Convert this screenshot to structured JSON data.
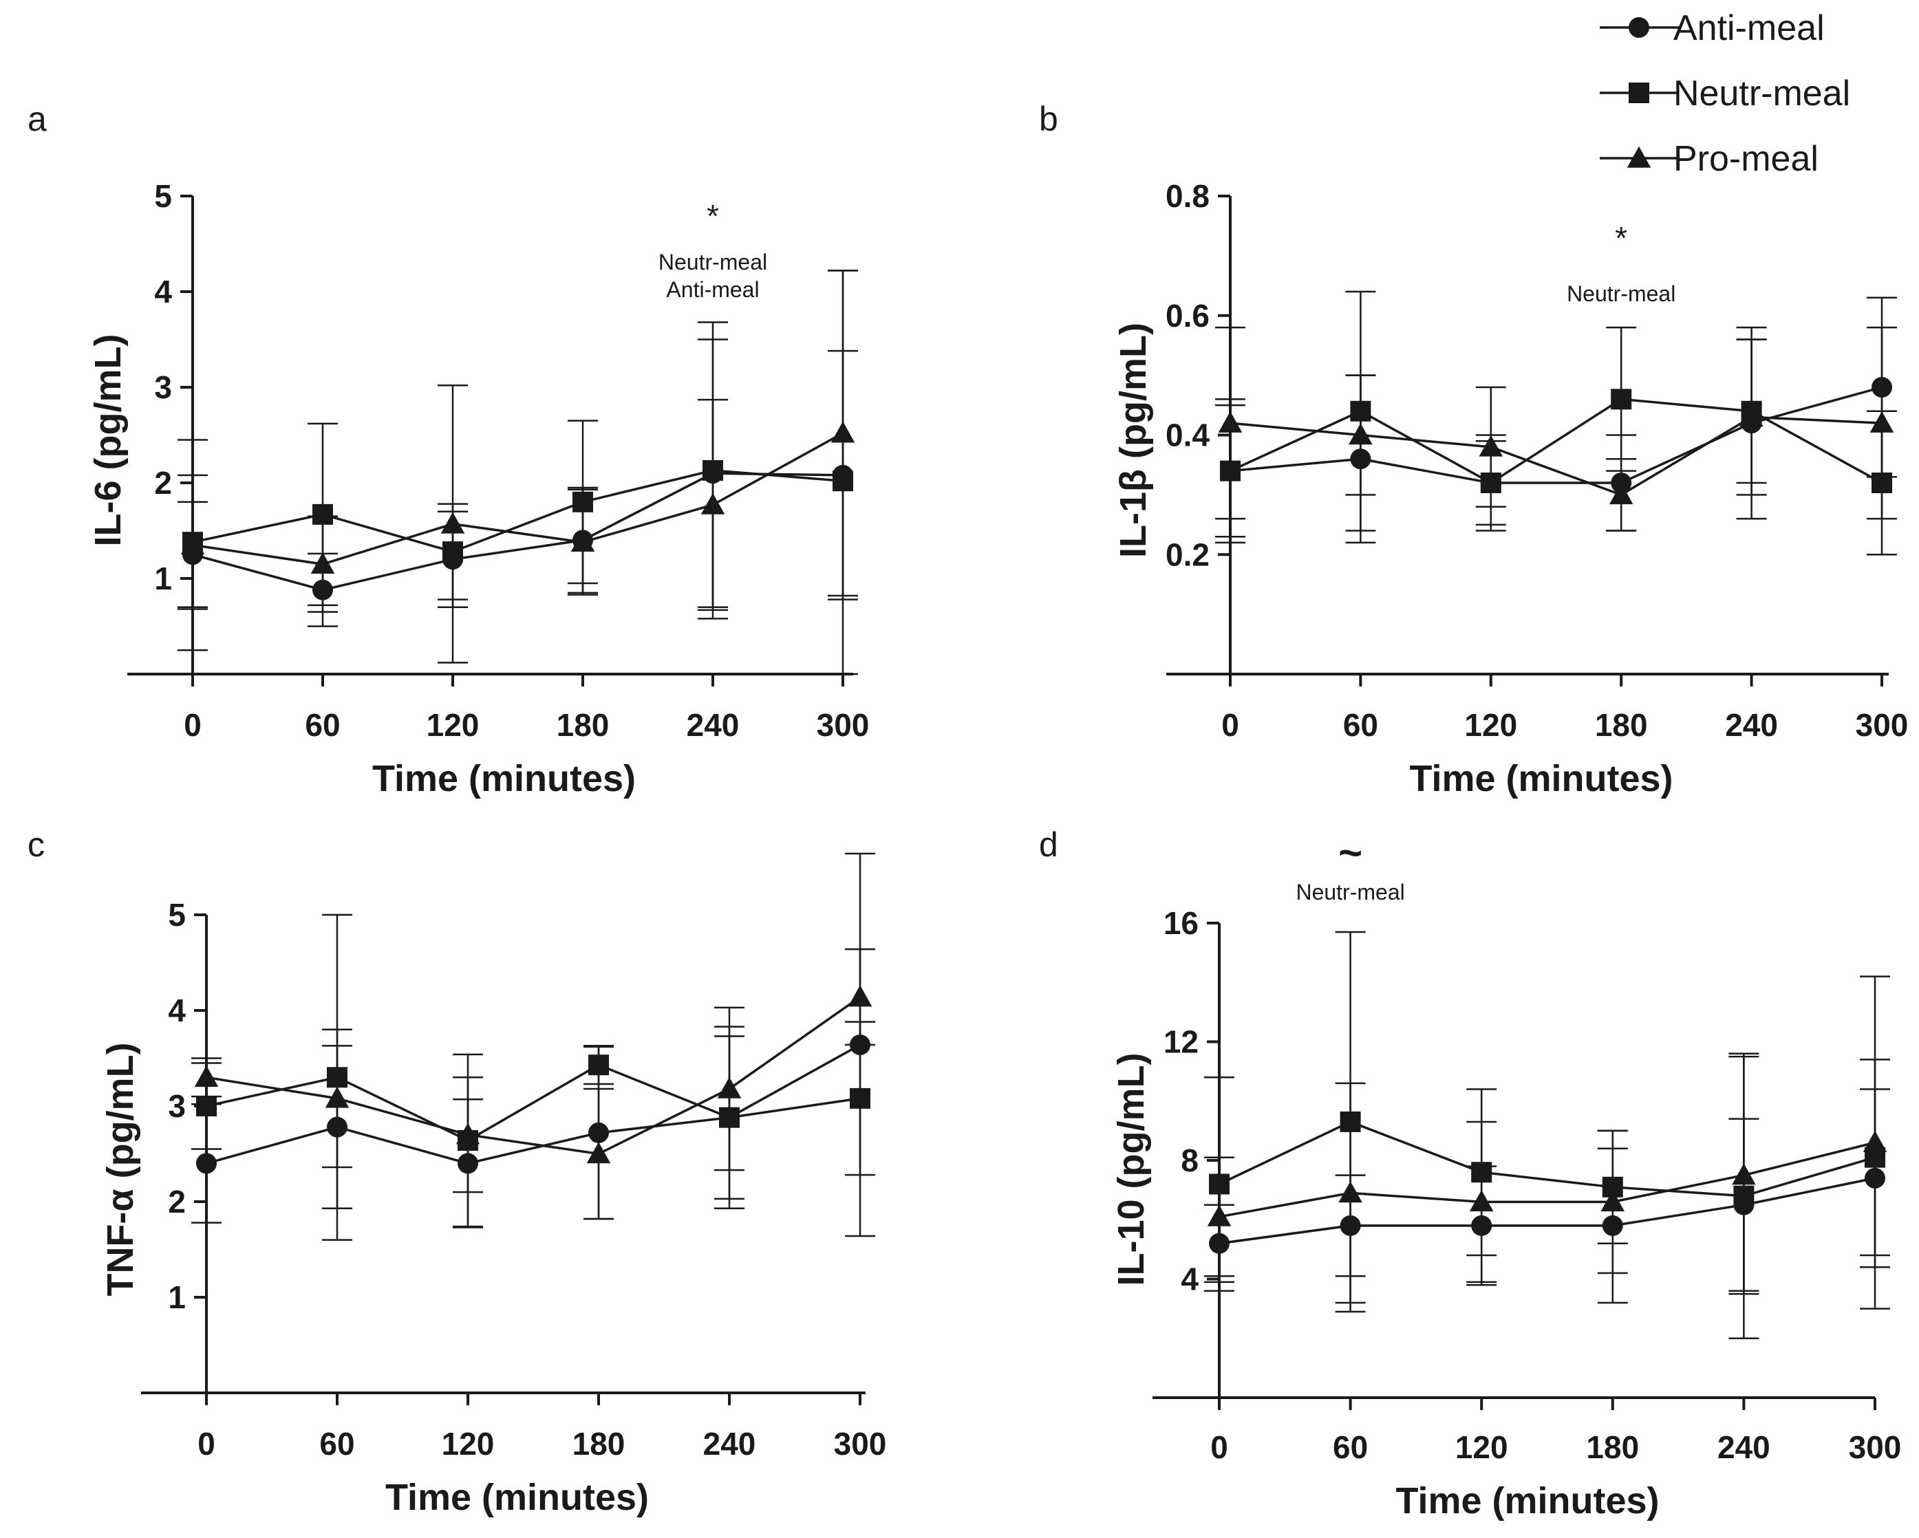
{
  "legend": {
    "entries": [
      {
        "label": "Anti-meal",
        "marker": "circle"
      },
      {
        "label": "Neutr-meal",
        "marker": "square"
      },
      {
        "label": "Pro-meal",
        "marker": "triangle"
      }
    ]
  },
  "chart_data": [
    {
      "panel": "a",
      "type": "line",
      "xlabel": "Time (minutes)",
      "ylabel": "IL-6 (pg/mL)",
      "x": [
        0,
        60,
        120,
        180,
        240,
        300
      ],
      "xticks": [
        "0",
        "60",
        "120",
        "180",
        "240",
        "300"
      ],
      "ylim": [
        0,
        5
      ],
      "yticks": [
        1,
        2,
        3,
        4,
        5
      ],
      "ytick_labels": [
        "1",
        "2",
        "3",
        "4",
        "5"
      ],
      "series": [
        {
          "name": "Anti-meal",
          "values": [
            1.25,
            0.88,
            1.2,
            1.4,
            2.1,
            2.08
          ],
          "sd": [
            0.55,
            0.38,
            0.5,
            0.55,
            1.4,
            1.3
          ]
        },
        {
          "name": "Neutr-meal",
          "values": [
            1.38,
            1.67,
            1.28,
            1.8,
            2.13,
            2.02
          ],
          "sd": [
            0.7,
            0.95,
            0.5,
            0.85,
            1.55,
            2.2
          ]
        },
        {
          "name": "Pro-meal",
          "values": [
            1.35,
            1.15,
            1.57,
            1.38,
            1.77,
            2.52
          ],
          "sd": [
            1.1,
            0.5,
            1.45,
            0.55,
            1.1,
            1.7
          ]
        }
      ],
      "annotations": [
        {
          "x": 240,
          "symbol": "*",
          "lines": [
            "Neutr-meal",
            "Anti-meal"
          ]
        }
      ]
    },
    {
      "panel": "b",
      "type": "line",
      "xlabel": "Time (minutes)",
      "ylabel": "IL-1β (pg/mL)",
      "x": [
        0,
        60,
        120,
        180,
        240,
        300
      ],
      "xticks": [
        "0",
        "60",
        "120",
        "180",
        "240",
        "300"
      ],
      "ylim": [
        0,
        0.8
      ],
      "yticks": [
        0.2,
        0.4,
        0.6,
        0.8
      ],
      "ytick_labels": [
        "0.2",
        "0.4",
        "0.6",
        "0.8"
      ],
      "series": [
        {
          "name": "Anti-meal",
          "values": [
            0.34,
            0.36,
            0.32,
            0.32,
            0.42,
            0.48
          ],
          "sd": [
            0.11,
            0.14,
            0.07,
            0.08,
            0.16,
            0.15
          ]
        },
        {
          "name": "Neutr-meal",
          "values": [
            0.34,
            0.44,
            0.32,
            0.46,
            0.44,
            0.32
          ],
          "sd": [
            0.12,
            0.2,
            0.08,
            0.12,
            0.12,
            0.12
          ]
        },
        {
          "name": "Pro-meal",
          "values": [
            0.42,
            0.4,
            0.38,
            0.3,
            0.43,
            0.42
          ],
          "sd": [
            0.16,
            0.1,
            0.1,
            0.06,
            0.13,
            0.16
          ]
        }
      ],
      "annotations": [
        {
          "x": 180,
          "symbol": "*",
          "lines": [
            "Neutr-meal"
          ]
        }
      ]
    },
    {
      "panel": "c",
      "type": "line",
      "xlabel": "Time (minutes)",
      "ylabel": "TNF-α (pg/mL)",
      "x": [
        0,
        60,
        120,
        180,
        240,
        300
      ],
      "xticks": [
        "0",
        "60",
        "120",
        "180",
        "240",
        "300"
      ],
      "ylim": [
        0,
        5
      ],
      "yticks": [
        1,
        2,
        3,
        4,
        5
      ],
      "ytick_labels": [
        "1",
        "2",
        "3",
        "4",
        "5"
      ],
      "series": [
        {
          "name": "Anti-meal",
          "values": [
            2.4,
            2.78,
            2.4,
            2.72,
            2.88,
            3.64
          ],
          "sd": [
            0.62,
            0.85,
            0.67,
            0.9,
            0.95,
            2.0
          ]
        },
        {
          "name": "Neutr-meal",
          "values": [
            3.0,
            3.3,
            2.64,
            3.43,
            2.88,
            3.08
          ],
          "sd": [
            0.45,
            1.7,
            0.9,
            0.2,
            0.85,
            0.8
          ]
        },
        {
          "name": "Pro-meal",
          "values": [
            3.3,
            3.08,
            2.7,
            2.5,
            3.18,
            4.14
          ],
          "sd": [
            0.2,
            0.72,
            0.6,
            0.68,
            0.85,
            0.5
          ]
        }
      ],
      "annotations": []
    },
    {
      "panel": "d",
      "type": "line",
      "xlabel": "Time (minutes)",
      "ylabel": "IL-10 (pg/mL)",
      "x": [
        0,
        60,
        120,
        180,
        240,
        300
      ],
      "xticks": [
        "0",
        "60",
        "120",
        "180",
        "240",
        "300"
      ],
      "ylim": [
        0,
        16
      ],
      "yticks": [
        4,
        8,
        12,
        16
      ],
      "ytick_labels": [
        "4",
        "8",
        "12",
        "16"
      ],
      "series": [
        {
          "name": "Anti-meal",
          "values": [
            5.2,
            5.8,
            5.8,
            5.8,
            6.5,
            7.4
          ],
          "sd": [
            1.3,
            1.7,
            2.0,
            2.6,
            2.9,
            3.0
          ]
        },
        {
          "name": "Neutr-meal",
          "values": [
            7.2,
            9.3,
            7.6,
            7.1,
            6.8,
            8.1
          ],
          "sd": [
            3.6,
            6.4,
            2.8,
            1.9,
            4.8,
            3.3
          ]
        },
        {
          "name": "Pro-meal",
          "values": [
            6.1,
            6.9,
            6.6,
            6.6,
            7.5,
            8.6
          ],
          "sd": [
            2.0,
            3.7,
            2.7,
            2.4,
            4.0,
            5.6
          ]
        }
      ],
      "annotations": [
        {
          "x": 60,
          "symbol": "~",
          "lines": [
            "Neutr-meal"
          ]
        }
      ]
    }
  ]
}
